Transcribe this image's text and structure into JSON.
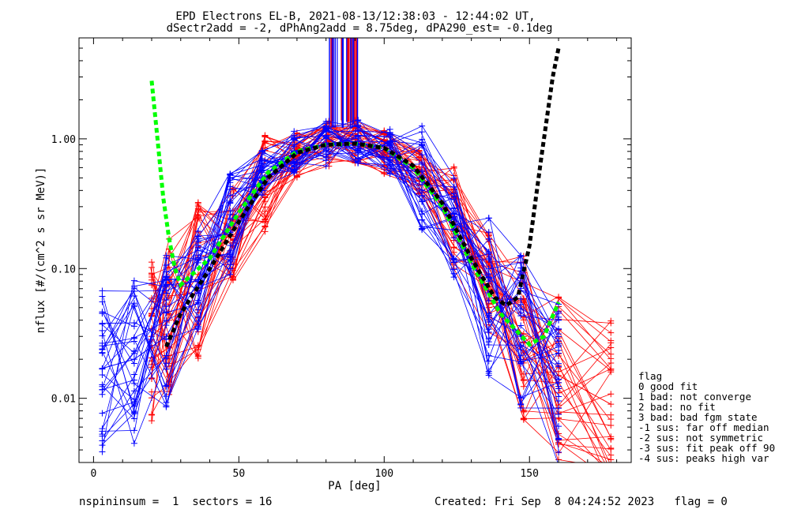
{
  "chart_data": {
    "type": "line",
    "title": "EPD Electrons EL-B, 2021-08-13/12:38:03 - 12:44:02 UT,",
    "subtitle": "dSectr2add = -2, dPhAng2add = 8.75deg, dPA290_est=  -0.1deg",
    "xlabel": "PA [deg]",
    "ylabel": "nflux [#/(cm^2 s sr MeV)]",
    "xlim": [
      -5,
      185
    ],
    "ylim": [
      0.0032,
      6.0
    ],
    "yscale": "log",
    "grid": false,
    "x_ticks": [
      0,
      50,
      100,
      150
    ],
    "x_tick_labels": [
      "0",
      "50",
      "100",
      "150"
    ],
    "y_ticks": [
      0.01,
      0.1,
      1.0
    ],
    "y_tick_labels": [
      "0.01",
      "0.10",
      "1.00"
    ],
    "colors": {
      "red": "#ff0000",
      "blue": "#0000ff",
      "green": "#00ff00",
      "black": "#000000"
    },
    "series": [
      {
        "color": "red",
        "style": "thin line with + markers",
        "x": [
          20,
          26,
          36,
          48,
          59,
          70,
          81,
          90,
          100,
          112,
          124,
          136,
          148,
          160,
          178
        ],
        "y": [
          0.03,
          0.04,
          0.09,
          0.2,
          0.45,
          0.75,
          0.92,
          0.95,
          0.8,
          0.55,
          0.25,
          0.08,
          0.03,
          0.015,
          0.009
        ]
      },
      {
        "color": "blue",
        "style": "thin line with + markers",
        "x": [
          3,
          14,
          25,
          36,
          47,
          58,
          69,
          80,
          91,
          102,
          113,
          124,
          136,
          147,
          160
        ],
        "y": [
          0.017,
          0.02,
          0.03,
          0.08,
          0.22,
          0.55,
          0.78,
          0.92,
          0.96,
          0.8,
          0.5,
          0.2,
          0.065,
          0.03,
          0.014
        ]
      },
      {
        "color": "green",
        "style": "thick dashed (fit)",
        "x": [
          20,
          22,
          24,
          26,
          28,
          30,
          40,
          50,
          60,
          70,
          80,
          90,
          100,
          110,
          120,
          130,
          140,
          150,
          155,
          160
        ],
        "y": [
          2.8,
          1.0,
          0.35,
          0.17,
          0.1,
          0.075,
          0.12,
          0.27,
          0.55,
          0.8,
          0.9,
          0.92,
          0.85,
          0.6,
          0.3,
          0.11,
          0.045,
          0.026,
          0.03,
          0.055
        ]
      },
      {
        "color": "black",
        "style": "thick dashed (fit)",
        "x": [
          25,
          30,
          40,
          50,
          60,
          70,
          80,
          90,
          100,
          110,
          120,
          130,
          138,
          142,
          146,
          150,
          154,
          158,
          160
        ],
        "y": [
          0.025,
          0.045,
          0.1,
          0.23,
          0.5,
          0.78,
          0.9,
          0.92,
          0.85,
          0.62,
          0.32,
          0.12,
          0.06,
          0.052,
          0.06,
          0.15,
          0.7,
          3.0,
          5.0
        ]
      }
    ],
    "legend": {
      "title": "flag",
      "entries": [
        " 0 good fit",
        " 1 bad: not converge",
        " 2 bad: no fit",
        " 3 bad: bad fgm state",
        "-1 sus: far off median",
        "-2 sus: not symmetric",
        "-3 sus: fit peak off 90",
        "-4 sus: peaks high var"
      ]
    },
    "footer": {
      "left": "nspininsum =  1  sectors = 16",
      "right": "Created: Fri Sep  8 04:24:52 2023   flag = 0"
    }
  }
}
